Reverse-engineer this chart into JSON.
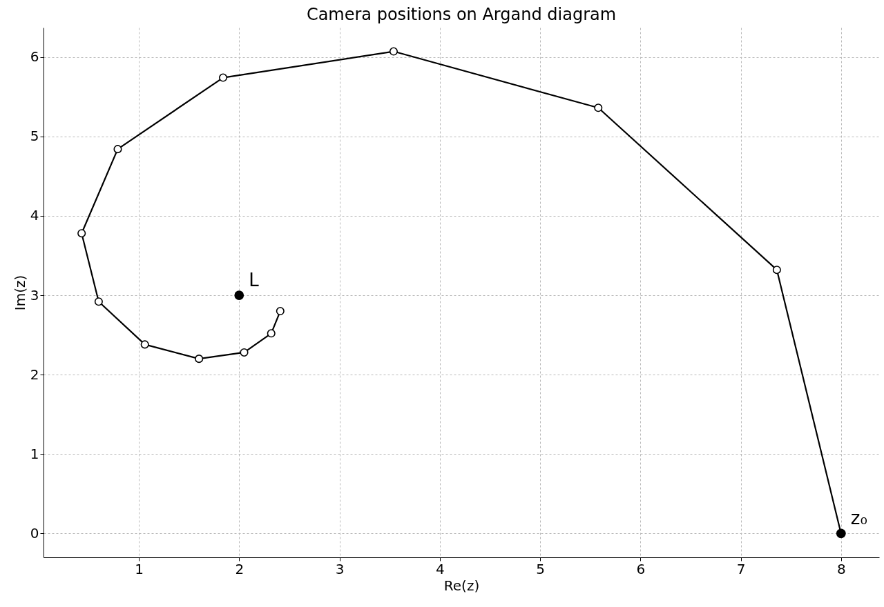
{
  "chart_data": {
    "type": "line",
    "title": "Camera positions on Argand diagram",
    "xlabel": "Re(z)",
    "ylabel": "Im(z)",
    "xlim": [
      0.05,
      8.38
    ],
    "ylim": [
      -0.3,
      6.37
    ],
    "xticks": [
      1,
      2,
      3,
      4,
      5,
      6,
      7,
      8
    ],
    "yticks": [
      0,
      1,
      2,
      3,
      4,
      5,
      6
    ],
    "grid": true,
    "marker": "circle",
    "line_style": "solid",
    "series": [
      {
        "type": "line",
        "color": "#000000",
        "x": [
          8,
          7.36,
          5.58,
          3.54,
          1.84,
          0.79,
          0.43,
          0.6,
          1.06,
          1.6,
          2.05,
          2.32,
          2.41
        ],
        "values": [
          0,
          3.32,
          5.36,
          6.07,
          5.74,
          4.84,
          3.78,
          2.92,
          2.38,
          2.2,
          2.28,
          2.52,
          2.8
        ]
      },
      {
        "type": "scatter",
        "color": "#000000",
        "x": [
          8
        ],
        "values": [
          0
        ]
      },
      {
        "type": "scatter",
        "color": "#000000",
        "x": [
          2
        ],
        "values": [
          3
        ]
      }
    ],
    "annotations": [
      {
        "text": "z₀",
        "x": 8,
        "y": 0
      },
      {
        "text": "L",
        "x": 2,
        "y": 3
      }
    ]
  }
}
